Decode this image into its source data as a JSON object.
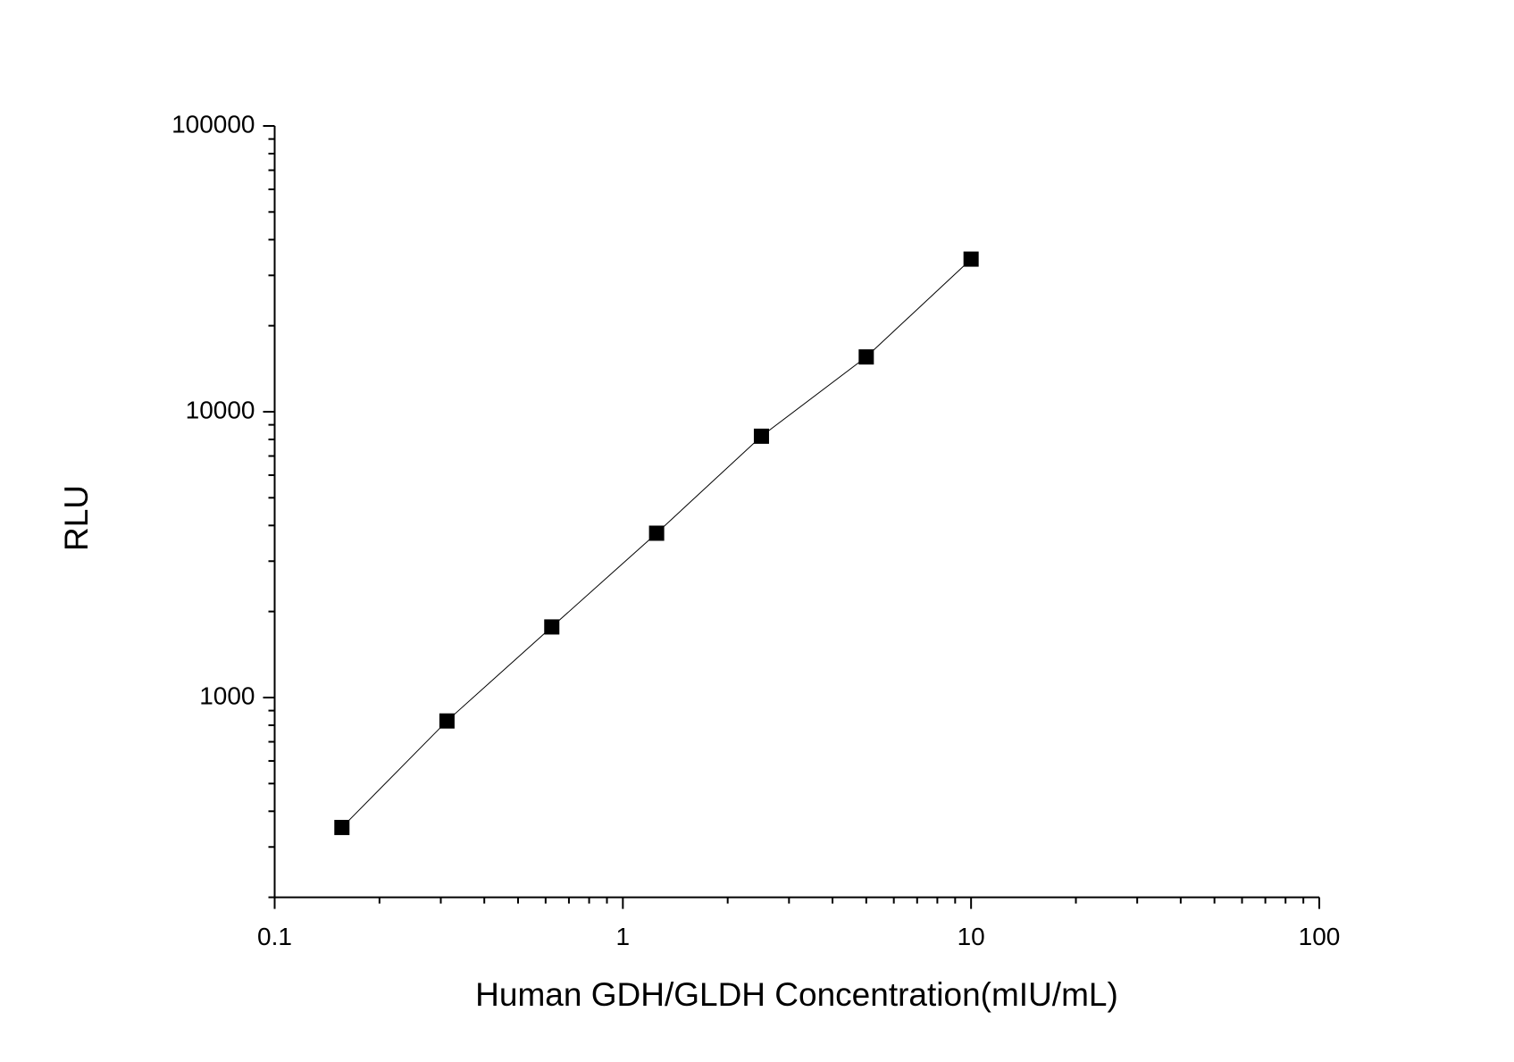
{
  "chart_data": {
    "type": "scatter-line",
    "x_label": "Human GDH/GLDH Concentration(mIU/mL)",
    "y_label": "RLU",
    "x": [
      0.156,
      0.3125,
      0.625,
      1.25,
      2.5,
      5,
      10
    ],
    "series": [
      {
        "color": "#000000",
        "values": [
          351,
          828,
          1766,
          3758,
          8210,
          15550,
          34200
        ]
      }
    ],
    "xlim": [
      0.1,
      100
    ],
    "ylim": [
      200,
      100000
    ],
    "xticks": [
      0.1,
      1,
      10,
      100
    ],
    "yticks": [
      1000,
      10000,
      100000
    ],
    "xminorticks": [
      0.2,
      0.3,
      0.4,
      0.5,
      0.6,
      0.7,
      0.8,
      0.9,
      2,
      3,
      4,
      5,
      6,
      7,
      8,
      9,
      20,
      30,
      40,
      50,
      60,
      70,
      80,
      90
    ],
    "yminorticks": [
      200,
      300,
      400,
      500,
      600,
      700,
      800,
      900,
      2000,
      3000,
      4000,
      5000,
      6000,
      7000,
      8000,
      9000,
      20000,
      30000,
      40000,
      50000,
      60000,
      70000,
      80000,
      90000
    ],
    "xscale": "log",
    "yscale": "log",
    "grid": false
  }
}
